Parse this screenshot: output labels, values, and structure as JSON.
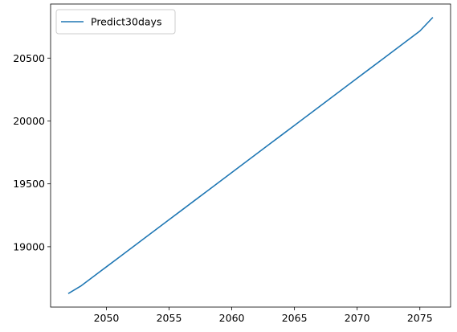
{
  "chart_data": {
    "type": "line",
    "title": "",
    "xlabel": "",
    "ylabel": "",
    "xlim": [
      2045.55,
      2077.45
    ],
    "ylim": [
      18520,
      20930
    ],
    "xticks": [
      2050,
      2055,
      2060,
      2065,
      2070,
      2075
    ],
    "yticks": [
      19000,
      19500,
      20000,
      20500
    ],
    "grid": false,
    "legend_position": "top-left",
    "series": [
      {
        "name": "Predict30days",
        "color": "#1f77b4",
        "x": [
          2047,
          2048,
          2049,
          2050,
          2051,
          2052,
          2053,
          2054,
          2055,
          2056,
          2057,
          2058,
          2059,
          2060,
          2061,
          2062,
          2063,
          2064,
          2065,
          2066,
          2067,
          2068,
          2069,
          2070,
          2071,
          2072,
          2073,
          2074,
          2075,
          2076
        ],
        "values": [
          18630,
          18690,
          18765,
          18840,
          18915,
          18990,
          19065,
          19140,
          19215,
          19290,
          19365,
          19440,
          19515,
          19590,
          19665,
          19740,
          19815,
          19890,
          19965,
          20040,
          20115,
          20190,
          20265,
          20340,
          20415,
          20490,
          20565,
          20640,
          20715,
          20820
        ]
      }
    ]
  }
}
